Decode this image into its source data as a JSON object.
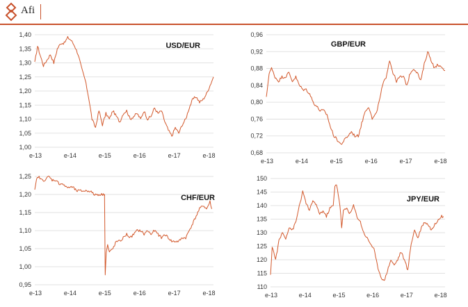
{
  "brand": {
    "name": "Afi",
    "accent": "#c8502a"
  },
  "series_color": "#d2572a",
  "chart_data": [
    {
      "type": "line",
      "title": "USD/EUR",
      "xticks": [
        "e-13",
        "e-14",
        "e-15",
        "e-16",
        "e-17",
        "e-18"
      ],
      "yticks": [
        "1,00",
        "1,05",
        "1,10",
        "1,15",
        "1,20",
        "1,25",
        "1,30",
        "1,35",
        "1,40"
      ],
      "ylim": [
        1.0,
        1.4
      ],
      "grid": true,
      "x": [
        0,
        0.08,
        0.15,
        0.25,
        0.35,
        0.45,
        0.55,
        0.65,
        0.75,
        0.85,
        0.95,
        1.05,
        1.15,
        1.25,
        1.35,
        1.45,
        1.55,
        1.65,
        1.75,
        1.85,
        1.95,
        2.05,
        2.15,
        2.25,
        2.35,
        2.45,
        2.55,
        2.65,
        2.75,
        2.85,
        2.95,
        3.05,
        3.15,
        3.25,
        3.35,
        3.45,
        3.55,
        3.65,
        3.75,
        3.85,
        3.95,
        4.05,
        4.15,
        4.25,
        4.35,
        4.45,
        4.55,
        4.65,
        4.75,
        4.85,
        4.95,
        5.05,
        5.15
      ],
      "values": [
        1.3,
        1.36,
        1.33,
        1.29,
        1.31,
        1.33,
        1.3,
        1.35,
        1.37,
        1.37,
        1.39,
        1.38,
        1.36,
        1.33,
        1.28,
        1.24,
        1.18,
        1.1,
        1.07,
        1.13,
        1.08,
        1.12,
        1.1,
        1.13,
        1.11,
        1.09,
        1.12,
        1.13,
        1.1,
        1.11,
        1.12,
        1.1,
        1.13,
        1.1,
        1.11,
        1.14,
        1.12,
        1.13,
        1.09,
        1.06,
        1.04,
        1.07,
        1.05,
        1.08,
        1.1,
        1.14,
        1.17,
        1.18,
        1.16,
        1.17,
        1.19,
        1.22,
        1.25
      ]
    },
    {
      "type": "line",
      "title": "GBP/EUR",
      "xticks": [
        "e-13",
        "e-14",
        "e-15",
        "e-16",
        "e-17",
        "e-18"
      ],
      "yticks": [
        "0,68",
        "0,72",
        "0,76",
        "0,80",
        "0,84",
        "0,88",
        "0,92",
        "0,96"
      ],
      "ylim": [
        0.68,
        0.96
      ],
      "grid": true,
      "x": [
        0,
        0.08,
        0.15,
        0.25,
        0.35,
        0.45,
        0.55,
        0.65,
        0.75,
        0.85,
        0.95,
        1.05,
        1.15,
        1.25,
        1.35,
        1.45,
        1.55,
        1.65,
        1.75,
        1.85,
        1.95,
        2.05,
        2.15,
        2.25,
        2.35,
        2.45,
        2.55,
        2.65,
        2.75,
        2.85,
        2.95,
        3.05,
        3.15,
        3.25,
        3.35,
        3.45,
        3.55,
        3.65,
        3.75,
        3.85,
        3.95,
        4.05,
        4.15,
        4.25,
        4.35,
        4.45,
        4.55,
        4.65,
        4.75,
        4.85,
        4.95,
        5.05,
        5.15
      ],
      "values": [
        0.81,
        0.87,
        0.88,
        0.86,
        0.85,
        0.86,
        0.86,
        0.87,
        0.85,
        0.86,
        0.84,
        0.83,
        0.83,
        0.82,
        0.8,
        0.79,
        0.78,
        0.78,
        0.77,
        0.74,
        0.72,
        0.71,
        0.7,
        0.71,
        0.72,
        0.73,
        0.72,
        0.72,
        0.75,
        0.78,
        0.79,
        0.76,
        0.77,
        0.8,
        0.84,
        0.86,
        0.9,
        0.87,
        0.85,
        0.86,
        0.86,
        0.84,
        0.87,
        0.88,
        0.87,
        0.85,
        0.89,
        0.92,
        0.9,
        0.88,
        0.89,
        0.88,
        0.875
      ]
    },
    {
      "type": "line",
      "title": "CHF/EUR",
      "xticks": [
        "e-13",
        "e-14",
        "e-15",
        "e-16",
        "e-17",
        "e-18"
      ],
      "yticks": [
        "0,95",
        "1,00",
        "1,05",
        "1,10",
        "1,15",
        "1,20",
        "1,25"
      ],
      "ylim": [
        0.95,
        1.25
      ],
      "grid": true,
      "x": [
        0,
        0.05,
        0.1,
        0.2,
        0.3,
        0.4,
        0.5,
        0.6,
        0.7,
        0.8,
        0.9,
        1.0,
        1.1,
        1.2,
        1.3,
        1.4,
        1.5,
        1.6,
        1.7,
        1.8,
        1.9,
        2.0,
        2.01,
        2.03,
        2.06,
        2.1,
        2.15,
        2.25,
        2.35,
        2.45,
        2.55,
        2.65,
        2.75,
        2.85,
        2.95,
        3.05,
        3.15,
        3.25,
        3.35,
        3.45,
        3.55,
        3.65,
        3.75,
        3.85,
        3.95,
        4.05,
        4.15,
        4.25,
        4.35,
        4.45,
        4.55,
        4.65,
        4.75,
        4.85,
        4.95,
        5.05,
        5.1
      ],
      "values": [
        1.21,
        1.24,
        1.25,
        1.24,
        1.24,
        1.25,
        1.24,
        1.24,
        1.23,
        1.23,
        1.22,
        1.22,
        1.22,
        1.21,
        1.21,
        1.21,
        1.21,
        1.21,
        1.2,
        1.2,
        1.2,
        1.2,
        1.2,
        0.98,
        1.04,
        1.06,
        1.04,
        1.05,
        1.07,
        1.07,
        1.08,
        1.09,
        1.08,
        1.09,
        1.1,
        1.1,
        1.09,
        1.1,
        1.09,
        1.1,
        1.09,
        1.08,
        1.09,
        1.08,
        1.07,
        1.07,
        1.07,
        1.08,
        1.08,
        1.1,
        1.12,
        1.14,
        1.16,
        1.17,
        1.16,
        1.18,
        1.16
      ]
    },
    {
      "type": "line",
      "title": "JPY/EUR",
      "xticks": [
        "e-13",
        "e-14",
        "e-15",
        "e-16",
        "e-17",
        "e-18"
      ],
      "yticks": [
        "110",
        "115",
        "120",
        "125",
        "130",
        "135",
        "140",
        "145",
        "150"
      ],
      "ylim": [
        110,
        150
      ],
      "grid": true,
      "x": [
        0,
        0.05,
        0.15,
        0.25,
        0.35,
        0.45,
        0.55,
        0.65,
        0.75,
        0.85,
        0.95,
        1.05,
        1.15,
        1.25,
        1.35,
        1.45,
        1.55,
        1.65,
        1.75,
        1.85,
        1.9,
        1.95,
        2.0,
        2.05,
        2.1,
        2.15,
        2.25,
        2.35,
        2.45,
        2.55,
        2.65,
        2.75,
        2.85,
        2.95,
        3.05,
        3.15,
        3.25,
        3.35,
        3.45,
        3.55,
        3.65,
        3.75,
        3.85,
        3.95,
        4.05,
        4.15,
        4.25,
        4.35,
        4.45,
        4.55,
        4.65,
        4.75,
        4.85,
        4.95,
        5.05,
        5.1
      ],
      "values": [
        114,
        125,
        120,
        127,
        130,
        128,
        132,
        131,
        134,
        140,
        145,
        141,
        138,
        142,
        140,
        137,
        138,
        136,
        139,
        140,
        147,
        148,
        144,
        140,
        132,
        138,
        139,
        137,
        140,
        136,
        134,
        130,
        128,
        126,
        124,
        118,
        114,
        112,
        116,
        120,
        118,
        120,
        123,
        120,
        116,
        126,
        131,
        128,
        132,
        134,
        133,
        131,
        133,
        135,
        136,
        136
      ]
    }
  ]
}
